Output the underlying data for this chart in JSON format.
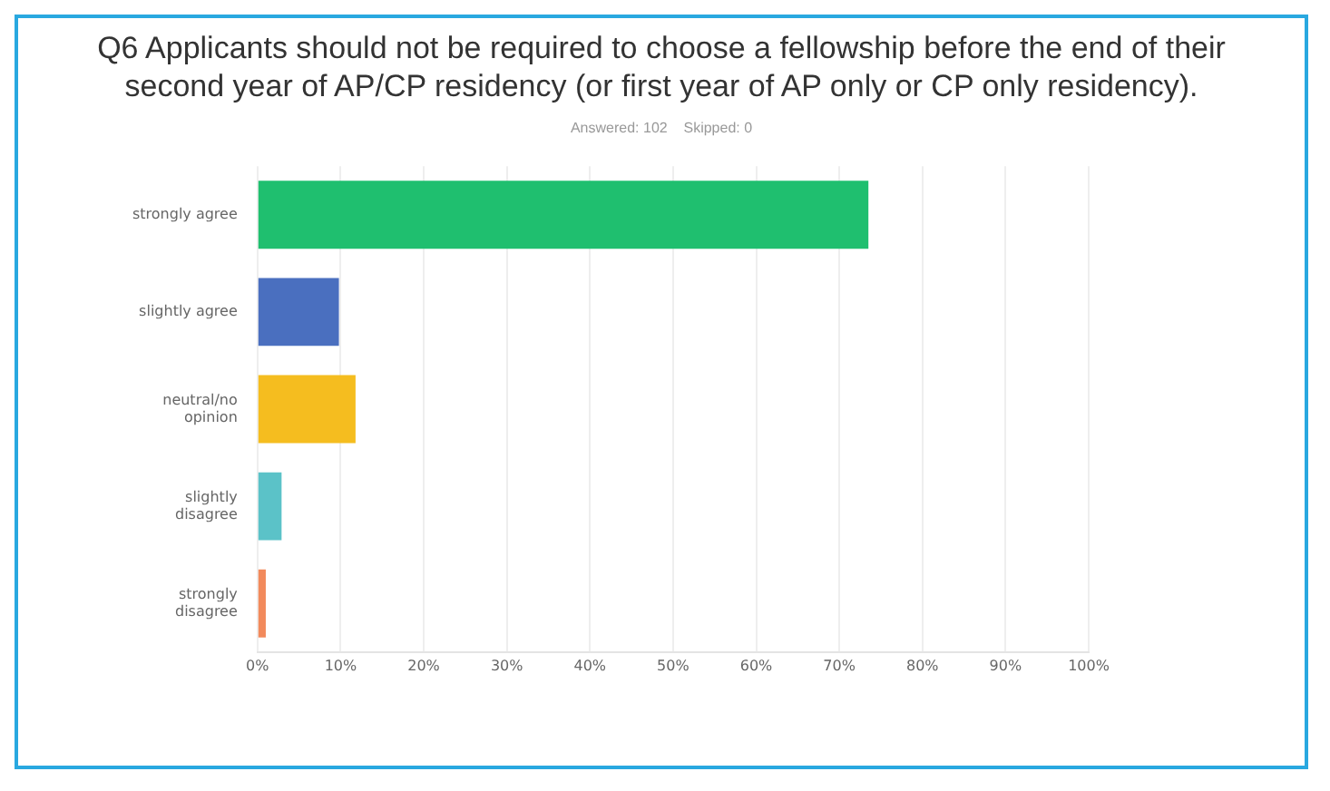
{
  "chart_data": {
    "type": "bar",
    "orientation": "horizontal",
    "title": "Q6 Applicants should not be required to choose a fellowship before the end of their second year of AP/CP residency (or first year of AP only or CP only residency).",
    "subtitle": "Answered: 102    Skipped: 0",
    "categories": [
      "strongly agree",
      "slightly agree",
      "neutral/no opinion",
      "slightly disagree",
      "strongly disagree"
    ],
    "values": [
      73.5,
      9.8,
      11.8,
      2.9,
      1.0
    ],
    "colors": [
      "#1fbf6f",
      "#4a6fbf",
      "#f5bd1f",
      "#5bc2c8",
      "#f28a5c"
    ],
    "xlim": [
      0,
      100
    ],
    "xticks": [
      {
        "value": 0,
        "label": "0%"
      },
      {
        "value": 10,
        "label": "10%"
      },
      {
        "value": 20,
        "label": "20%"
      },
      {
        "value": 30,
        "label": "30%"
      },
      {
        "value": 40,
        "label": "40%"
      },
      {
        "value": 50,
        "label": "50%"
      },
      {
        "value": 60,
        "label": "60%"
      },
      {
        "value": 70,
        "label": "70%"
      },
      {
        "value": 80,
        "label": "80%"
      },
      {
        "value": 90,
        "label": "90%"
      },
      {
        "value": 100,
        "label": "100%"
      }
    ],
    "grid": "x",
    "legend": false
  }
}
